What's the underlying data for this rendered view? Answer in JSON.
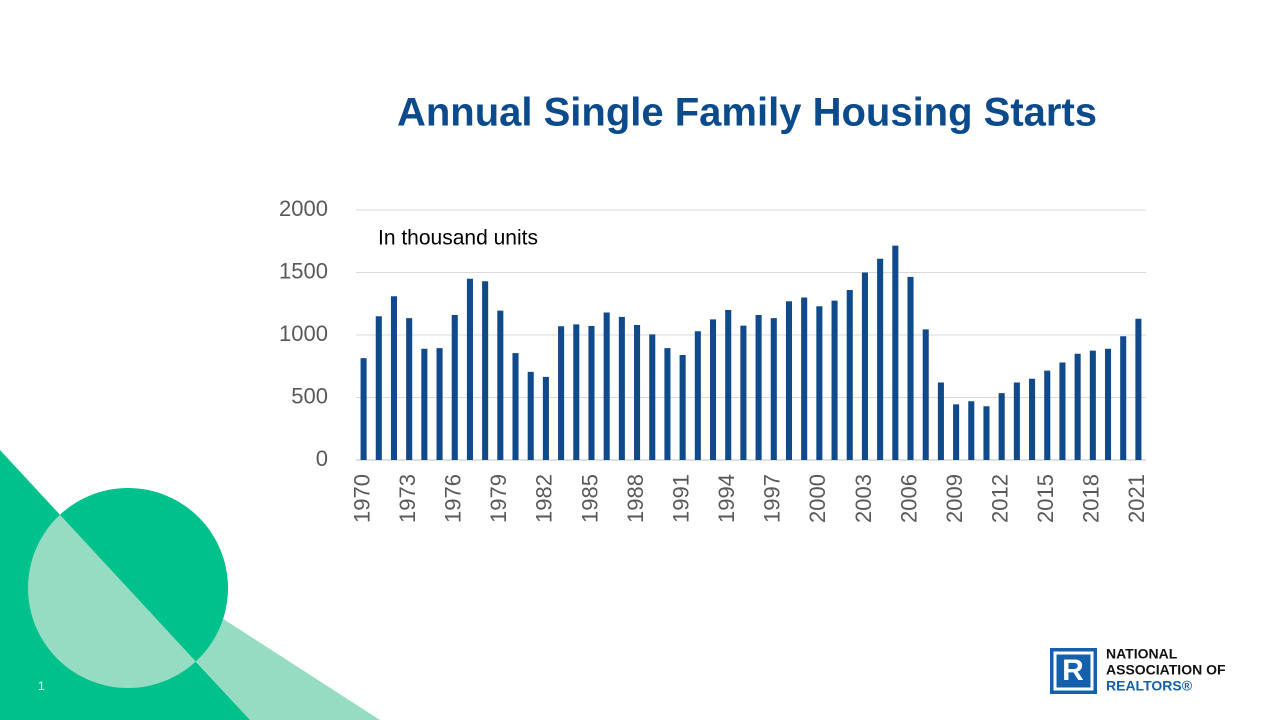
{
  "chart_data": {
    "type": "bar",
    "title": "Annual Single Family Housing Starts",
    "annotation": "In thousand units",
    "categories": [
      "1970",
      null,
      null,
      "1973",
      null,
      null,
      "1976",
      null,
      null,
      "1979",
      null,
      null,
      "1982",
      null,
      null,
      "1985",
      null,
      null,
      "1988",
      null,
      null,
      "1991",
      null,
      null,
      "1994",
      null,
      null,
      "1997",
      null,
      null,
      "2000",
      null,
      null,
      "2003",
      null,
      null,
      "2006",
      null,
      null,
      "2009",
      null,
      null,
      "2012",
      null,
      null,
      "2015",
      null,
      null,
      "2018",
      null,
      null,
      "2021"
    ],
    "values": [
      815,
      1150,
      1310,
      1135,
      890,
      895,
      1160,
      1450,
      1430,
      1195,
      855,
      705,
      665,
      1070,
      1085,
      1072,
      1180,
      1145,
      1080,
      1005,
      895,
      840,
      1030,
      1125,
      1200,
      1075,
      1160,
      1135,
      1270,
      1300,
      1230,
      1275,
      1360,
      1500,
      1610,
      1715,
      1465,
      1045,
      620,
      445,
      470,
      430,
      535,
      620,
      650,
      715,
      780,
      850,
      875,
      890,
      990,
      1130
    ],
    "color": "#114a8b",
    "ylim": [
      0,
      2000
    ],
    "yticks": [
      0,
      500,
      1000,
      1500,
      2000
    ],
    "grid": true
  },
  "slide": {
    "number": "1",
    "logo": [
      "NATIONAL",
      "ASSOCIATION OF",
      "REALTORS®"
    ]
  }
}
